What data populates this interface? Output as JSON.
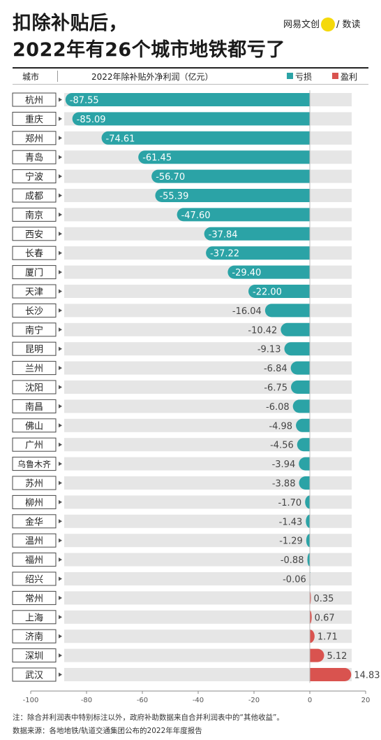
{
  "title_lines": [
    "扣除补贴后，",
    "2022年有26个城市地铁都亏了"
  ],
  "brand": {
    "left": "网易文创",
    "badge": "Rechao",
    "right": "/ 数读"
  },
  "header": {
    "city_label": "城市",
    "metric_label": "2022年除补贴外净利润（亿元）"
  },
  "legend": {
    "loss": "亏损",
    "profit": "盈利"
  },
  "colors": {
    "loss": "#2ba3a6",
    "profit": "#d9534f",
    "track": "#e6e6e6",
    "brand_dot": "#f5d90a"
  },
  "notes": [
    "注：除合并利润表中特别标注以外，政府补助数据来自合并利润表中的“其他收益”。",
    "数据来源：各地地铁/轨道交通集团公布的2022年年度报告"
  ],
  "chart_data": {
    "type": "bar",
    "orientation": "horizontal",
    "categories": [
      "杭州",
      "重庆",
      "郑州",
      "青岛",
      "宁波",
      "成都",
      "南京",
      "西安",
      "长春",
      "厦门",
      "天津",
      "长沙",
      "南宁",
      "昆明",
      "兰州",
      "沈阳",
      "南昌",
      "佛山",
      "广州",
      "乌鲁木齐",
      "苏州",
      "柳州",
      "金华",
      "温州",
      "福州",
      "绍兴",
      "常州",
      "上海",
      "济南",
      "深圳",
      "武汉"
    ],
    "values": [
      -87.55,
      -85.09,
      -74.61,
      -61.45,
      -56.7,
      -55.39,
      -47.6,
      -37.84,
      -37.22,
      -29.4,
      -22.0,
      -16.04,
      -10.42,
      -9.13,
      -6.84,
      -6.75,
      -6.08,
      -4.98,
      -4.56,
      -3.94,
      -3.88,
      -1.7,
      -1.43,
      -1.29,
      -0.88,
      -0.06,
      0.35,
      0.67,
      1.71,
      5.12,
      14.83
    ],
    "labels": [
      "-87.55",
      "-85.09",
      "-74.61",
      "-61.45",
      "-56.70",
      "-55.39",
      "-47.60",
      "-37.84",
      "-37.22",
      "-29.40",
      "-22.00",
      "-16.04",
      "-10.42",
      "-9.13",
      "-6.84",
      "-6.75",
      "-6.08",
      "-4.98",
      "-4.56",
      "-3.94",
      "-3.88",
      "-1.70",
      "-1.43",
      "-1.29",
      "-0.88",
      "-0.06",
      "0.35",
      "0.67",
      "1.71",
      "5.12",
      "14.83"
    ],
    "xlim": [
      -100,
      20
    ],
    "xticks": [
      -100,
      -80,
      -60,
      -40,
      -20,
      0,
      20
    ],
    "xtick_labels": [
      "-100",
      "-80",
      "-60",
      "-40",
      "-20",
      "0",
      "20"
    ],
    "title": "",
    "xlabel": "",
    "ylabel": ""
  }
}
